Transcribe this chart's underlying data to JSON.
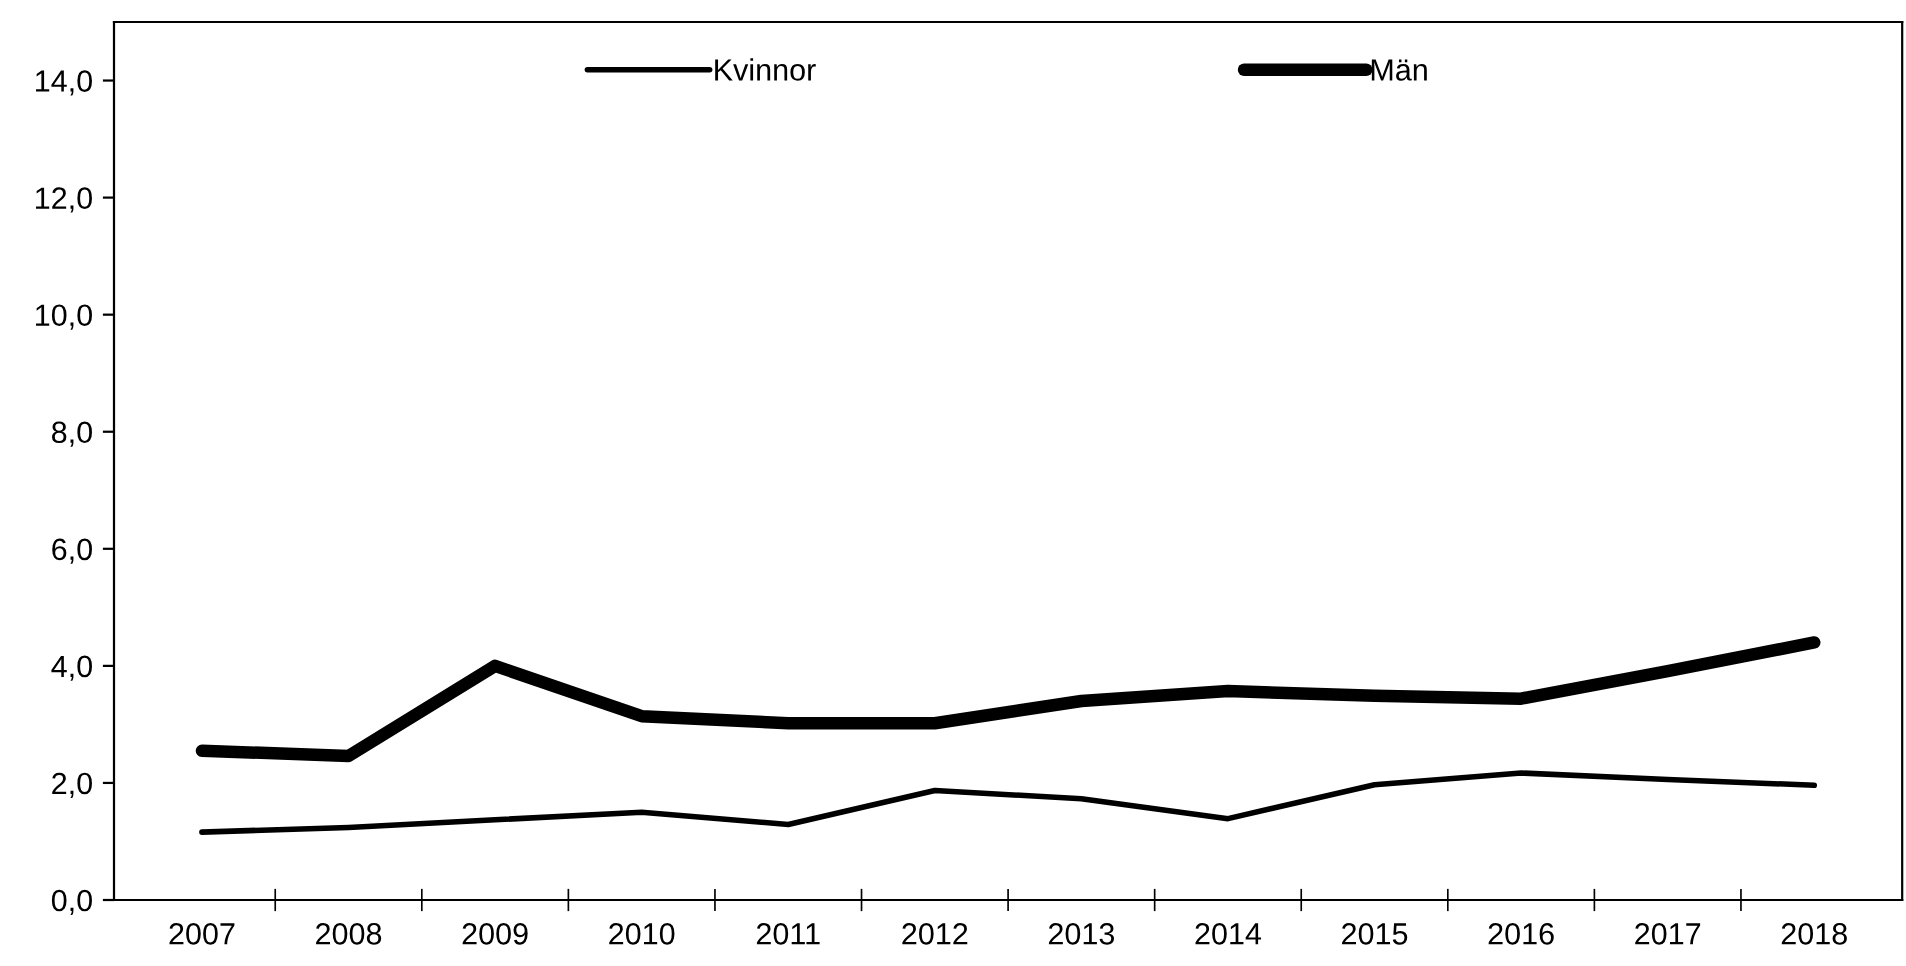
{
  "chart_data": {
    "type": "line",
    "categories": [
      "2007",
      "2008",
      "2009",
      "2010",
      "2011",
      "2012",
      "2013",
      "2014",
      "2015",
      "2016",
      "2017",
      "2018"
    ],
    "series": [
      {
        "name": "Kvinnor",
        "color": "#000000",
        "values": [
          1.16,
          1.24,
          1.37,
          1.5,
          1.29,
          1.87,
          1.73,
          1.39,
          1.97,
          2.17,
          2.06,
          1.96
        ]
      },
      {
        "name": "Män",
        "color": "#000000",
        "values": [
          2.55,
          2.46,
          4.0,
          3.14,
          3.02,
          3.02,
          3.4,
          3.57,
          3.49,
          3.44,
          3.91,
          4.4
        ]
      }
    ],
    "ylim": [
      0,
      15
    ],
    "yticks": [
      {
        "value": 0,
        "label": "0,0"
      },
      {
        "value": 2,
        "label": "2,0"
      },
      {
        "value": 4,
        "label": "4,0"
      },
      {
        "value": 6,
        "label": "6,0"
      },
      {
        "value": 8,
        "label": "8,0"
      },
      {
        "value": 10,
        "label": "10,0"
      },
      {
        "value": 12,
        "label": "12,0"
      },
      {
        "value": 14,
        "label": "14,0"
      }
    ],
    "grid": false,
    "legend": "top",
    "marker": "none",
    "line_style": "solid"
  }
}
